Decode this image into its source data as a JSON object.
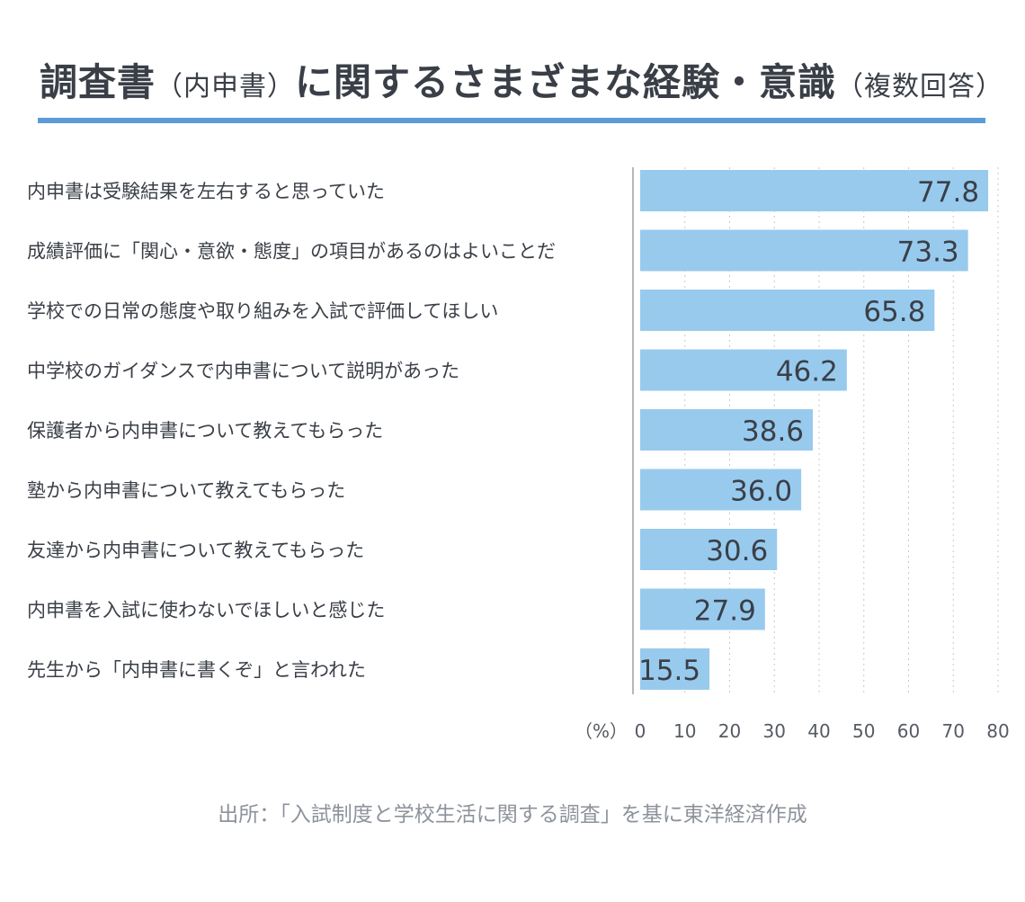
{
  "title": {
    "main1": "調査書",
    "paren": "（内申書）",
    "main2": "に関するさまざまな経験・意識",
    "paren2": "（複数回答）"
  },
  "unit_label": "（%）",
  "source": "出所：「入試制度と学校生活に関する調査」を基に東洋経済作成",
  "colors": {
    "bar": "#98caee",
    "title_rule": "#5b9bd8"
  },
  "chart_data": {
    "type": "bar",
    "orientation": "horizontal",
    "title": "調査書（内申書）に関するさまざまな経験・意識（複数回答）",
    "categories": [
      "内申書は受験結果を左右すると思っていた",
      "成績評価に「関心・意欲・態度」の項目があるのはよいことだ",
      "学校での日常の態度や取り組みを入試で評価してほしい",
      "中学校のガイダンスで内申書について説明があった",
      "保護者から内申書について教えてもらった",
      "塾から内申書について教えてもらった",
      "友達から内申書について教えてもらった",
      "内申書を入試に使わないでほしいと感じた",
      "先生から「内申書に書くぞ」と言われた"
    ],
    "values": [
      77.8,
      73.3,
      65.8,
      46.2,
      38.6,
      36.0,
      30.6,
      27.9,
      15.5
    ],
    "value_labels": [
      "77.8",
      "73.3",
      "65.8",
      "46.2",
      "38.6",
      "36.0",
      "30.6",
      "27.9",
      "15.5"
    ],
    "xlabel": "（%）",
    "xlim": [
      0,
      80
    ],
    "ticks": [
      "0",
      "10",
      "20",
      "30",
      "40",
      "50",
      "60",
      "70",
      "80"
    ],
    "grid": true
  }
}
